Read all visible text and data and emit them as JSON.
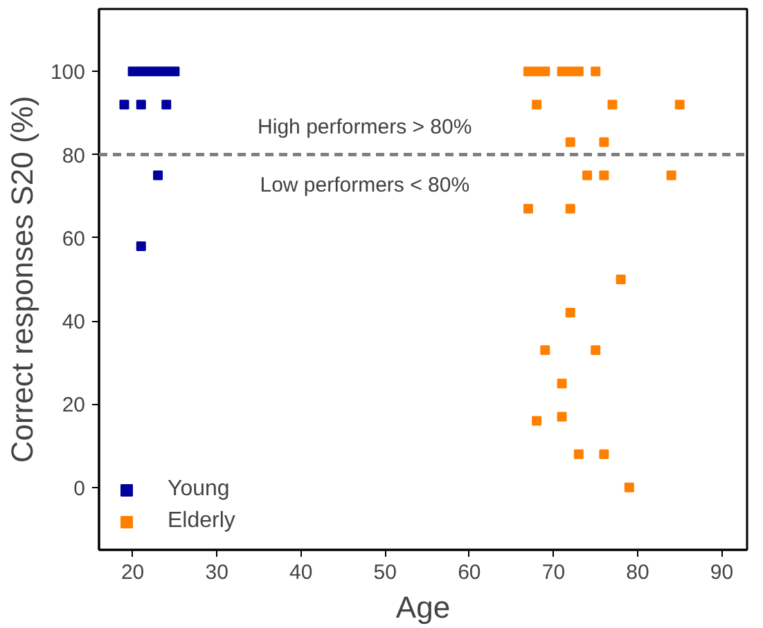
{
  "chart_data": {
    "type": "scatter",
    "xlabel": "Age",
    "ylabel": "Correct responses S20 (%)",
    "xlim": [
      16,
      93
    ],
    "ylim": [
      -15,
      115
    ],
    "xticks": [
      20,
      30,
      40,
      50,
      60,
      70,
      80,
      90
    ],
    "yticks": [
      0,
      20,
      40,
      60,
      80,
      100
    ],
    "marker": "square",
    "legend": "bottom left",
    "grid": false,
    "series": [
      {
        "name": "Young",
        "color": "#00009f",
        "x": [
          20,
          21,
          22,
          23,
          24,
          25,
          19,
          21,
          24,
          23,
          21
        ],
        "values": [
          100,
          100,
          100,
          100,
          100,
          100,
          92,
          92,
          92,
          75,
          58
        ]
      },
      {
        "name": "Elderly",
        "color": "#ff8000",
        "x": [
          67,
          68,
          69,
          71,
          72,
          73,
          75,
          68,
          77,
          85,
          72,
          76,
          74,
          76,
          84,
          67,
          72,
          78,
          72,
          69,
          75,
          71,
          71,
          68,
          73,
          76,
          79
        ],
        "values": [
          100,
          100,
          100,
          100,
          100,
          100,
          100,
          92,
          92,
          92,
          83,
          83,
          75,
          75,
          75,
          67,
          67,
          50,
          42,
          33,
          33,
          25,
          17,
          16,
          8,
          8,
          0
        ]
      }
    ],
    "ref_lines": [
      {
        "axis": "y",
        "value": 80,
        "color": "#808080",
        "line_style": "dashed"
      }
    ],
    "annotations": [
      "High performers > 80%",
      "Low performers < 80%"
    ]
  }
}
